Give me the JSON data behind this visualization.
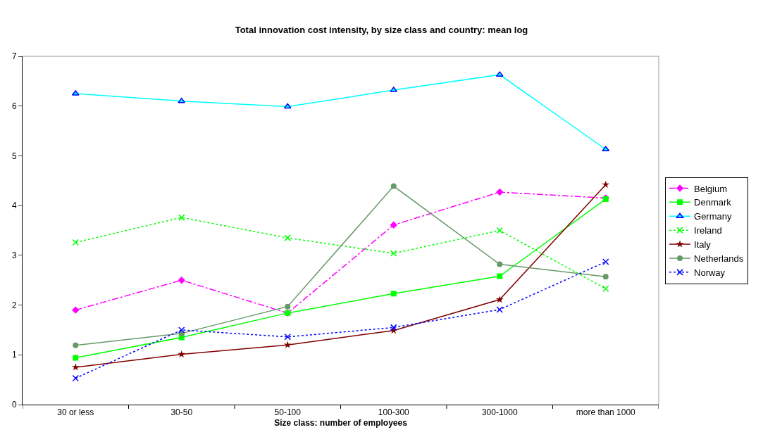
{
  "chart_data": {
    "type": "line",
    "title": "Total innovation cost intensity, by size class and country: mean log",
    "xlabel": "Size class: number of employees",
    "categories": [
      "30 or less",
      "30-50",
      "50-100",
      "100-300",
      "300-1000",
      "more than 1000"
    ],
    "ylim": [
      0,
      7
    ],
    "yticks": [
      0,
      1,
      2,
      3,
      4,
      5,
      6,
      7
    ],
    "legend": "right",
    "series": [
      {
        "name": "Belgium",
        "color": "#ff00ff",
        "marker": "diamond",
        "line_style": "dashed",
        "values": [
          1.9,
          2.5,
          1.84,
          3.61,
          4.27,
          4.15
        ]
      },
      {
        "name": "Denmark",
        "color": "#00ff00",
        "marker": "square",
        "line_style": "solid",
        "values": [
          0.94,
          1.35,
          1.84,
          2.23,
          2.58,
          4.13
        ]
      },
      {
        "name": "Germany",
        "color": "#00ffff",
        "marker": "triangle",
        "line_style": "solid",
        "values": [
          6.25,
          6.1,
          5.99,
          6.32,
          6.63,
          5.13
        ]
      },
      {
        "name": "Ireland",
        "color": "#00ff00",
        "marker": "cross",
        "line_style": "dotted",
        "values": [
          3.26,
          3.76,
          3.35,
          3.04,
          3.5,
          2.33
        ]
      },
      {
        "name": "Italy",
        "color": "#800000",
        "marker": "star",
        "line_style": "solid",
        "values": [
          0.75,
          1.01,
          1.2,
          1.49,
          2.11,
          4.42
        ]
      },
      {
        "name": "Netherlands",
        "color": "#669966",
        "marker": "circle",
        "line_style": "solid",
        "values": [
          1.19,
          1.43,
          1.97,
          4.39,
          2.82,
          2.57
        ]
      },
      {
        "name": "Norway",
        "color": "#0000ff",
        "marker": "cross",
        "line_style": "dotted",
        "values": [
          0.53,
          1.5,
          1.36,
          1.55,
          1.91,
          2.87
        ]
      }
    ]
  }
}
